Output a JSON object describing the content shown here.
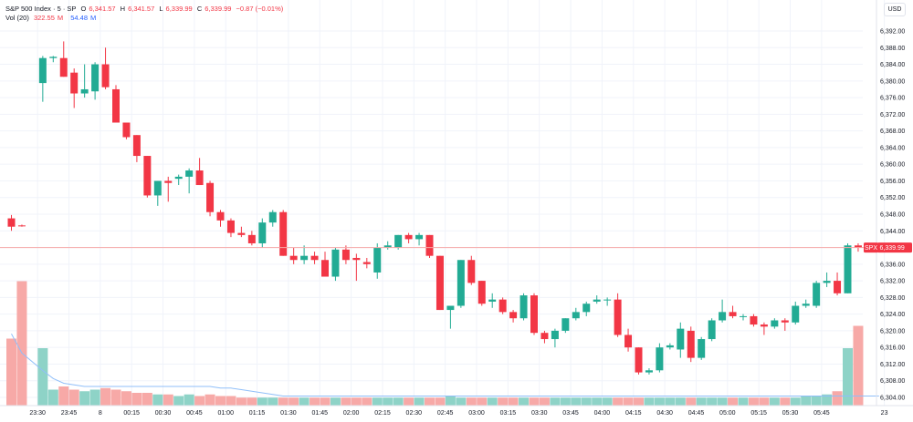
{
  "legend": {
    "symbol": "S&P 500 Index · 5 · SP",
    "o_label": "O",
    "o_value": "6,341.57",
    "h_label": "H",
    "h_value": "6,341.57",
    "l_label": "L",
    "l_value": "6,339.99",
    "c_label": "C",
    "c_value": "6,339.99",
    "change": "−0.87 (−0.01%)",
    "vol_label": "Vol (20)",
    "vol_value": "322.55",
    "vol_unit": "M",
    "vol_ma": "54.48",
    "vol_ma_unit": "M"
  },
  "currency": "USD",
  "colors": {
    "up": "#22ab94",
    "down": "#f23645",
    "vol_up": "#8ed3c7",
    "vol_down": "#f7a9a7",
    "ma": "#90bff9",
    "price_line": "#f7a9a7"
  },
  "chart_data": {
    "type": "candlestick",
    "price_axis": {
      "min": 6304,
      "max": 6392,
      "ticks": [
        "6,392.00",
        "6,388.00",
        "6,384.00",
        "6,380.00",
        "6,376.00",
        "6,372.00",
        "6,368.00",
        "6,364.00",
        "6,360.00",
        "6,356.00",
        "6,352.00",
        "6,348.00",
        "6,344.00",
        "6,340.00",
        "6,336.00",
        "6,332.00",
        "6,328.00",
        "6,324.00",
        "6,320.00",
        "6,316.00",
        "6,312.00",
        "6,308.00",
        "6,304.00"
      ]
    },
    "time_labels": [
      {
        "label": "23:30",
        "slot": 2.5
      },
      {
        "label": "23:45",
        "slot": 5.5
      },
      {
        "label": "8",
        "slot": 8.5
      },
      {
        "label": "00:15",
        "slot": 11.5
      },
      {
        "label": "00:30",
        "slot": 14.5
      },
      {
        "label": "00:45",
        "slot": 17.5
      },
      {
        "label": "01:00",
        "slot": 20.5
      },
      {
        "label": "01:15",
        "slot": 23.5
      },
      {
        "label": "01:30",
        "slot": 26.5
      },
      {
        "label": "01:45",
        "slot": 29.5
      },
      {
        "label": "02:00",
        "slot": 32.5
      },
      {
        "label": "02:15",
        "slot": 35.5
      },
      {
        "label": "02:30",
        "slot": 38.5
      },
      {
        "label": "02:45",
        "slot": 41.5
      },
      {
        "label": "03:00",
        "slot": 44.5
      },
      {
        "label": "03:15",
        "slot": 47.5
      },
      {
        "label": "03:30",
        "slot": 50.5
      },
      {
        "label": "03:45",
        "slot": 53.5
      },
      {
        "label": "04:00",
        "slot": 56.5
      },
      {
        "label": "04:15",
        "slot": 59.5
      },
      {
        "label": "04:30",
        "slot": 62.5
      },
      {
        "label": "04:45",
        "slot": 65.5
      },
      {
        "label": "05:00",
        "slot": 68.5
      },
      {
        "label": "05:15",
        "slot": 71.5
      },
      {
        "label": "05:30",
        "slot": 74.5
      },
      {
        "label": "05:45",
        "slot": 77.5
      },
      {
        "label": "23",
        "slot": 83.5
      }
    ],
    "last_price": 6339.99,
    "last_price_label": "6,339.99",
    "ticker": "SPX",
    "candles": [
      {
        "o": 6347.0,
        "h": 6347.8,
        "l": 6344.0,
        "c": 6345.0,
        "v": 0.42
      },
      {
        "o": 6345.3,
        "h": 6345.5,
        "l": 6345.0,
        "c": 6345.2,
        "v": 0.78
      },
      {
        "o": 6379.5,
        "h": 6386.0,
        "l": 6375.0,
        "c": 6385.5,
        "v": 0.36
      },
      {
        "o": 6385.5,
        "h": 6386.0,
        "l": 6384.5,
        "c": 6385.8,
        "v": 0.1
      },
      {
        "o": 6385.5,
        "h": 6389.5,
        "l": 6381.0,
        "c": 6381.0,
        "v": 0.12
      },
      {
        "o": 6382.0,
        "h": 6383.0,
        "l": 6373.5,
        "c": 6377.0,
        "v": 0.1
      },
      {
        "o": 6377.0,
        "h": 6384.0,
        "l": 6376.0,
        "c": 6378.0,
        "v": 0.09
      },
      {
        "o": 6377.5,
        "h": 6384.5,
        "l": 6375.5,
        "c": 6384.0,
        "v": 0.1
      },
      {
        "o": 6384.0,
        "h": 6388.0,
        "l": 6378.0,
        "c": 6378.5,
        "v": 0.11
      },
      {
        "o": 6378.0,
        "h": 6379.0,
        "l": 6370.0,
        "c": 6370.0,
        "v": 0.1
      },
      {
        "o": 6370.0,
        "h": 6370.0,
        "l": 6366.0,
        "c": 6366.5,
        "v": 0.09
      },
      {
        "o": 6367.0,
        "h": 6367.0,
        "l": 6360.5,
        "c": 6362.0,
        "v": 0.08
      },
      {
        "o": 6362.0,
        "h": 6362.0,
        "l": 6352.0,
        "c": 6352.5,
        "v": 0.08
      },
      {
        "o": 6352.5,
        "h": 6356.0,
        "l": 6350.0,
        "c": 6356.0,
        "v": 0.07
      },
      {
        "o": 6356.0,
        "h": 6357.0,
        "l": 6351.0,
        "c": 6355.5,
        "v": 0.07
      },
      {
        "o": 6356.5,
        "h": 6357.5,
        "l": 6355.0,
        "c": 6357.0,
        "v": 0.06
      },
      {
        "o": 6357.0,
        "h": 6359.0,
        "l": 6353.0,
        "c": 6358.5,
        "v": 0.07
      },
      {
        "o": 6358.5,
        "h": 6361.5,
        "l": 6355.0,
        "c": 6355.0,
        "v": 0.06
      },
      {
        "o": 6355.5,
        "h": 6356.0,
        "l": 6347.5,
        "c": 6348.5,
        "v": 0.07
      },
      {
        "o": 6348.5,
        "h": 6349.0,
        "l": 6345.0,
        "c": 6346.5,
        "v": 0.06
      },
      {
        "o": 6346.5,
        "h": 6347.0,
        "l": 6342.5,
        "c": 6343.5,
        "v": 0.06
      },
      {
        "o": 6343.5,
        "h": 6345.0,
        "l": 6342.5,
        "c": 6343.0,
        "v": 0.05
      },
      {
        "o": 6343.0,
        "h": 6344.0,
        "l": 6340.5,
        "c": 6341.0,
        "v": 0.05
      },
      {
        "o": 6341.0,
        "h": 6347.0,
        "l": 6340.0,
        "c": 6346.0,
        "v": 0.05
      },
      {
        "o": 6346.0,
        "h": 6349.0,
        "l": 6345.0,
        "c": 6348.5,
        "v": 0.05
      },
      {
        "o": 6348.5,
        "h": 6349.0,
        "l": 6338.0,
        "c": 6338.0,
        "v": 0.05
      },
      {
        "o": 6338.0,
        "h": 6340.0,
        "l": 6336.0,
        "c": 6337.0,
        "v": 0.05
      },
      {
        "o": 6337.0,
        "h": 6340.5,
        "l": 6336.0,
        "c": 6338.0,
        "v": 0.05
      },
      {
        "o": 6338.0,
        "h": 6339.0,
        "l": 6336.0,
        "c": 6337.0,
        "v": 0.05
      },
      {
        "o": 6337.0,
        "h": 6339.0,
        "l": 6333.0,
        "c": 6333.0,
        "v": 0.05
      },
      {
        "o": 6333.0,
        "h": 6340.0,
        "l": 6332.0,
        "c": 6339.5,
        "v": 0.05
      },
      {
        "o": 6339.5,
        "h": 6340.5,
        "l": 6336.0,
        "c": 6337.0,
        "v": 0.05
      },
      {
        "o": 6337.5,
        "h": 6338.5,
        "l": 6332.0,
        "c": 6337.0,
        "v": 0.05
      },
      {
        "o": 6336.5,
        "h": 6337.5,
        "l": 6335.0,
        "c": 6336.0,
        "v": 0.05
      },
      {
        "o": 6334.0,
        "h": 6341.0,
        "l": 6332.5,
        "c": 6340.0,
        "v": 0.05
      },
      {
        "o": 6340.0,
        "h": 6341.5,
        "l": 6339.5,
        "c": 6340.5,
        "v": 0.05
      },
      {
        "o": 6340.0,
        "h": 6343.0,
        "l": 6339.5,
        "c": 6343.0,
        "v": 0.05
      },
      {
        "o": 6343.0,
        "h": 6343.5,
        "l": 6341.0,
        "c": 6342.0,
        "v": 0.05
      },
      {
        "o": 6342.0,
        "h": 6343.5,
        "l": 6340.5,
        "c": 6343.0,
        "v": 0.05
      },
      {
        "o": 6343.0,
        "h": 6343.0,
        "l": 6337.5,
        "c": 6338.0,
        "v": 0.05
      },
      {
        "o": 6338.0,
        "h": 6338.0,
        "l": 6325.0,
        "c": 6325.0,
        "v": 0.05
      },
      {
        "o": 6325.0,
        "h": 6326.0,
        "l": 6320.5,
        "c": 6326.0,
        "v": 0.06
      },
      {
        "o": 6326.0,
        "h": 6337.0,
        "l": 6325.5,
        "c": 6337.0,
        "v": 0.05
      },
      {
        "o": 6337.0,
        "h": 6338.0,
        "l": 6331.0,
        "c": 6331.5,
        "v": 0.05
      },
      {
        "o": 6332.0,
        "h": 6332.0,
        "l": 6326.0,
        "c": 6326.5,
        "v": 0.05
      },
      {
        "o": 6327.0,
        "h": 6329.0,
        "l": 6325.5,
        "c": 6327.5,
        "v": 0.05
      },
      {
        "o": 6327.5,
        "h": 6328.0,
        "l": 6324.0,
        "c": 6324.5,
        "v": 0.05
      },
      {
        "o": 6324.5,
        "h": 6325.0,
        "l": 6322.0,
        "c": 6323.0,
        "v": 0.05
      },
      {
        "o": 6323.0,
        "h": 6329.0,
        "l": 6322.5,
        "c": 6328.5,
        "v": 0.05
      },
      {
        "o": 6328.5,
        "h": 6329.0,
        "l": 6319.0,
        "c": 6319.5,
        "v": 0.05
      },
      {
        "o": 6319.5,
        "h": 6320.0,
        "l": 6317.0,
        "c": 6318.0,
        "v": 0.05
      },
      {
        "o": 6318.0,
        "h": 6320.5,
        "l": 6316.0,
        "c": 6320.0,
        "v": 0.05
      },
      {
        "o": 6320.0,
        "h": 6323.0,
        "l": 6319.5,
        "c": 6323.0,
        "v": 0.05
      },
      {
        "o": 6323.0,
        "h": 6325.5,
        "l": 6322.5,
        "c": 6324.5,
        "v": 0.05
      },
      {
        "o": 6324.5,
        "h": 6327.0,
        "l": 6323.5,
        "c": 6326.5,
        "v": 0.05
      },
      {
        "o": 6327.0,
        "h": 6328.5,
        "l": 6326.5,
        "c": 6327.5,
        "v": 0.05
      },
      {
        "o": 6327.5,
        "h": 6328.0,
        "l": 6326.0,
        "c": 6327.5,
        "v": 0.05
      },
      {
        "o": 6327.5,
        "h": 6329.0,
        "l": 6318.5,
        "c": 6319.0,
        "v": 0.05
      },
      {
        "o": 6319.0,
        "h": 6320.5,
        "l": 6315.0,
        "c": 6316.0,
        "v": 0.05
      },
      {
        "o": 6316.0,
        "h": 6316.0,
        "l": 6309.5,
        "c": 6310.0,
        "v": 0.05
      },
      {
        "o": 6310.0,
        "h": 6311.0,
        "l": 6309.5,
        "c": 6310.5,
        "v": 0.05
      },
      {
        "o": 6310.5,
        "h": 6317.0,
        "l": 6310.0,
        "c": 6316.0,
        "v": 0.05
      },
      {
        "o": 6316.0,
        "h": 6317.0,
        "l": 6315.5,
        "c": 6316.5,
        "v": 0.05
      },
      {
        "o": 6315.5,
        "h": 6322.0,
        "l": 6313.5,
        "c": 6320.5,
        "v": 0.05
      },
      {
        "o": 6320.0,
        "h": 6321.0,
        "l": 6312.5,
        "c": 6313.5,
        "v": 0.05
      },
      {
        "o": 6313.5,
        "h": 6318.5,
        "l": 6313.0,
        "c": 6318.0,
        "v": 0.05
      },
      {
        "o": 6318.0,
        "h": 6323.0,
        "l": 6317.5,
        "c": 6322.5,
        "v": 0.05
      },
      {
        "o": 6322.5,
        "h": 6327.5,
        "l": 6322.0,
        "c": 6324.5,
        "v": 0.05
      },
      {
        "o": 6324.5,
        "h": 6326.0,
        "l": 6323.0,
        "c": 6323.5,
        "v": 0.05
      },
      {
        "o": 6323.5,
        "h": 6324.0,
        "l": 6322.5,
        "c": 6323.5,
        "v": 0.05
      },
      {
        "o": 6323.5,
        "h": 6324.0,
        "l": 6321.0,
        "c": 6321.5,
        "v": 0.05
      },
      {
        "o": 6321.5,
        "h": 6322.0,
        "l": 6319.0,
        "c": 6321.0,
        "v": 0.05
      },
      {
        "o": 6321.0,
        "h": 6323.0,
        "l": 6320.5,
        "c": 6322.5,
        "v": 0.05
      },
      {
        "o": 6322.5,
        "h": 6323.0,
        "l": 6320.0,
        "c": 6322.0,
        "v": 0.05
      },
      {
        "o": 6322.0,
        "h": 6327.0,
        "l": 6321.5,
        "c": 6326.0,
        "v": 0.05
      },
      {
        "o": 6326.0,
        "h": 6327.5,
        "l": 6325.5,
        "c": 6326.5,
        "v": 0.06
      },
      {
        "o": 6326.0,
        "h": 6332.0,
        "l": 6325.5,
        "c": 6331.5,
        "v": 0.06
      },
      {
        "o": 6331.5,
        "h": 6334.0,
        "l": 6330.5,
        "c": 6332.0,
        "v": 0.07
      },
      {
        "o": 6332.0,
        "h": 6334.0,
        "l": 6328.5,
        "c": 6329.0,
        "v": 0.09
      },
      {
        "o": 6329.0,
        "h": 6341.0,
        "l": 6329.0,
        "c": 6340.5,
        "v": 0.36
      },
      {
        "o": 6340.5,
        "h": 6341.0,
        "l": 6339.0,
        "c": 6340.0,
        "v": 0.5
      }
    ],
    "volume_ma": [
      0.45,
      0.33,
      0.22,
      0.17,
      0.14,
      0.13,
      0.12,
      0.12,
      0.12,
      0.12,
      0.12,
      0.12,
      0.12,
      0.12,
      0.12,
      0.12,
      0.12,
      0.12,
      0.12,
      0.11,
      0.11,
      0.1,
      0.09,
      0.08,
      0.07,
      0.06,
      0.06,
      0.06,
      0.06,
      0.06,
      0.06,
      0.06,
      0.06,
      0.06,
      0.06,
      0.06,
      0.06,
      0.06,
      0.06,
      0.06,
      0.06,
      0.06,
      0.06,
      0.06,
      0.06,
      0.06,
      0.06,
      0.06,
      0.06,
      0.06,
      0.06,
      0.06,
      0.06,
      0.06,
      0.06,
      0.06,
      0.06,
      0.06,
      0.06,
      0.06,
      0.06,
      0.06,
      0.06,
      0.06,
      0.06,
      0.06,
      0.06,
      0.06,
      0.06,
      0.06,
      0.06,
      0.06,
      0.06,
      0.06,
      0.06,
      0.06,
      0.06,
      0.06,
      0.06,
      0.06,
      0.06,
      0.06,
      0.06
    ]
  }
}
